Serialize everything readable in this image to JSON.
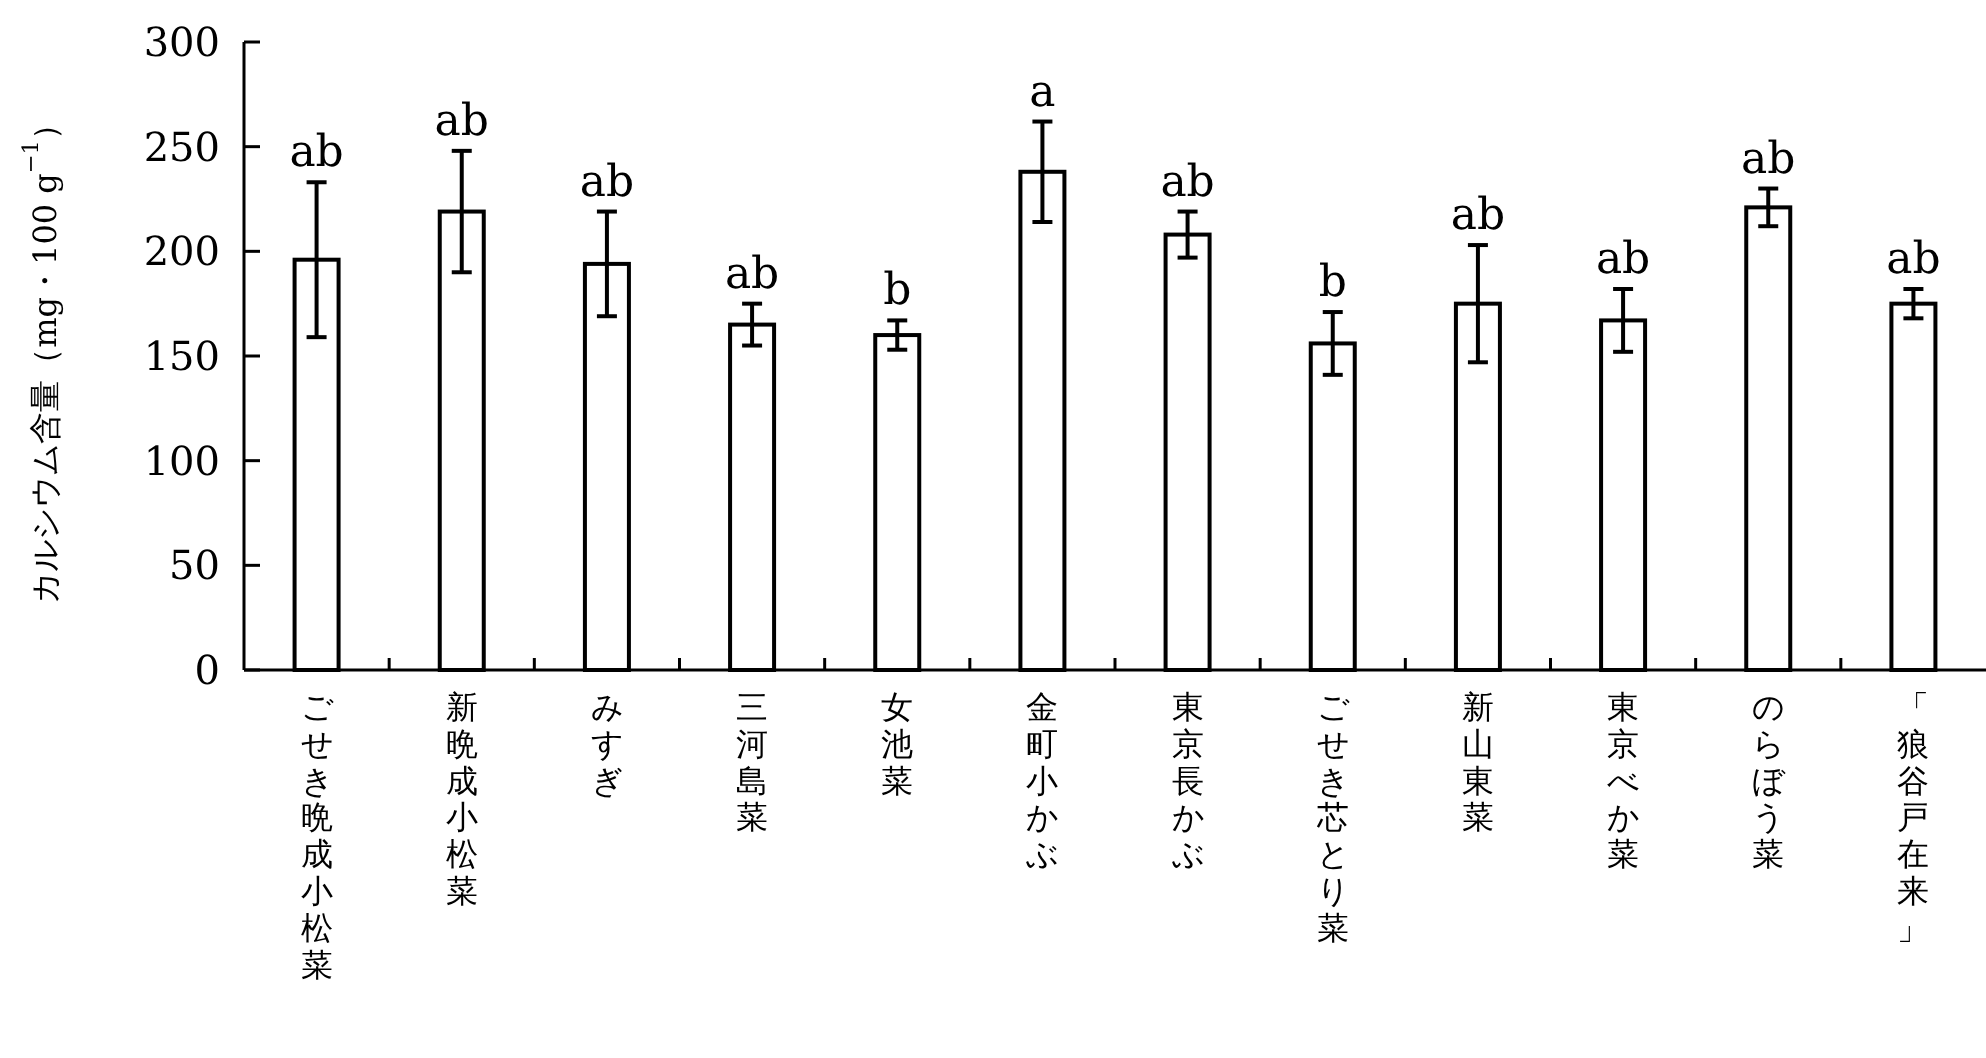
{
  "chart_data": {
    "type": "bar",
    "ylabel": "カルシウム含量（mg・100 g$^{−1}$）",
    "categories": [
      "ごせき晩成小松菜",
      "新晩成小松菜",
      "みすぎ",
      "三河島菜",
      "女池菜",
      "金町小かぶ",
      "東京長かぶ",
      "ごせき芯とり菜",
      "新山東菜",
      "東京べか菜",
      "のらぼう菜",
      "「狼谷戸在来」"
    ],
    "values": [
      196,
      219,
      194,
      165,
      160,
      238,
      208,
      156,
      175,
      167,
      221,
      175
    ],
    "errors": [
      37,
      29,
      25,
      10,
      7,
      24,
      11,
      15,
      28,
      15,
      9,
      7
    ],
    "color": "#ffffff",
    "ylim": [
      0,
      300
    ],
    "yticks": [
      0,
      50,
      100,
      150,
      200,
      250,
      300
    ],
    "grid": false,
    "annotations": [
      {
        "text": "ab",
        "x": "ごせき晩成小松菜",
        "y": 233
      },
      {
        "text": "ab",
        "x": "新晩成小松菜",
        "y": 248
      },
      {
        "text": "ab",
        "x": "みすぎ",
        "y": 219
      },
      {
        "text": "ab",
        "x": "三河島菜",
        "y": 175
      },
      {
        "text": "b",
        "x": "女池菜",
        "y": 167
      },
      {
        "text": "a",
        "x": "金町小かぶ",
        "y": 262
      },
      {
        "text": "ab",
        "x": "東京長かぶ",
        "y": 219
      },
      {
        "text": "b",
        "x": "ごせき芯とり菜",
        "y": 171
      },
      {
        "text": "ab",
        "x": "新山東菜",
        "y": 203
      },
      {
        "text": "ab",
        "x": "東京べか菜",
        "y": 182
      },
      {
        "text": "ab",
        "x": "のらぼう菜",
        "y": 230
      },
      {
        "text": "ab",
        "x": "「狼谷戸在来」",
        "y": 182
      }
    ]
  }
}
